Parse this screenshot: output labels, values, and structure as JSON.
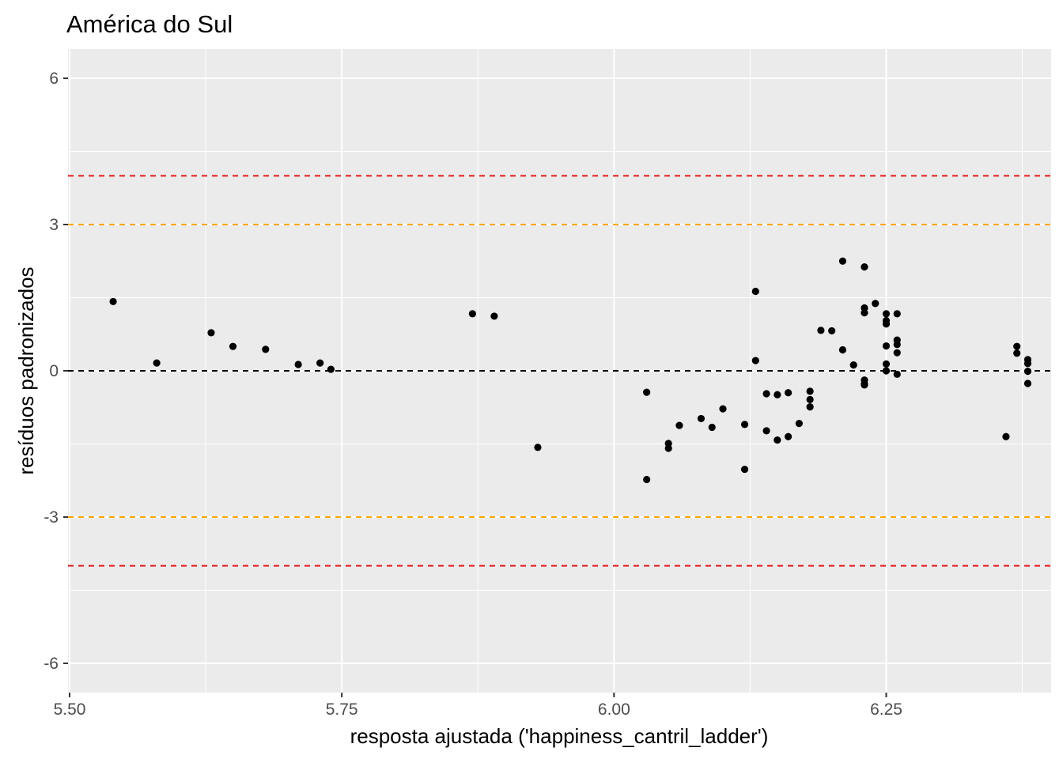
{
  "chart_data": {
    "type": "scatter",
    "title": "América do Sul",
    "xlabel": "resposta ajustada ('happiness_cantril_ladder')",
    "ylabel": "resíduos padronizados",
    "xlim": [
      5.5,
      6.4
    ],
    "ylim": [
      -6.6,
      6.6
    ],
    "x_ticks": [
      5.5,
      5.75,
      6.0,
      6.25
    ],
    "x_tick_labels": [
      "5.50",
      "5.75",
      "6.00",
      "6.25"
    ],
    "y_ticks": [
      -6,
      -3,
      0,
      3,
      6
    ],
    "y_tick_labels": [
      "-6",
      "-3",
      "0",
      "3",
      "6"
    ],
    "grid": true,
    "panel_color": "#ebebeb",
    "point_color": "#000000",
    "reference_lines": [
      {
        "y": 0,
        "color": "#000000",
        "style": "dashed"
      },
      {
        "y": 3,
        "color": "#ffa500",
        "style": "dashed"
      },
      {
        "y": -3,
        "color": "#ffa500",
        "style": "dashed"
      },
      {
        "y": 4,
        "color": "#e41a1c",
        "style": "dashed"
      },
      {
        "y": -4,
        "color": "#e41a1c",
        "style": "dashed"
      }
    ],
    "points": [
      [
        5.54,
        1.42
      ],
      [
        5.58,
        0.16
      ],
      [
        5.63,
        0.78
      ],
      [
        5.65,
        0.5
      ],
      [
        5.68,
        0.44
      ],
      [
        5.71,
        0.13
      ],
      [
        5.73,
        0.16
      ],
      [
        5.74,
        0.03
      ],
      [
        5.87,
        1.17
      ],
      [
        5.89,
        1.12
      ],
      [
        5.93,
        -1.57
      ],
      [
        6.03,
        -2.23
      ],
      [
        6.03,
        -0.44
      ],
      [
        6.05,
        -1.59
      ],
      [
        6.05,
        -1.49
      ],
      [
        6.06,
        -1.12
      ],
      [
        6.08,
        -0.98
      ],
      [
        6.09,
        -1.16
      ],
      [
        6.1,
        -0.78
      ],
      [
        6.12,
        -2.02
      ],
      [
        6.12,
        -1.1
      ],
      [
        6.13,
        1.63
      ],
      [
        6.13,
        0.21
      ],
      [
        6.14,
        -0.47
      ],
      [
        6.14,
        -1.23
      ],
      [
        6.15,
        -0.49
      ],
      [
        6.15,
        -1.42
      ],
      [
        6.16,
        -0.45
      ],
      [
        6.16,
        -1.35
      ],
      [
        6.17,
        -1.08
      ],
      [
        6.18,
        -0.42
      ],
      [
        6.18,
        -0.59
      ],
      [
        6.18,
        -0.74
      ],
      [
        6.19,
        0.83
      ],
      [
        6.2,
        0.82
      ],
      [
        6.21,
        2.25
      ],
      [
        6.21,
        0.43
      ],
      [
        6.22,
        0.12
      ],
      [
        6.23,
        -0.29
      ],
      [
        6.23,
        -0.27
      ],
      [
        6.23,
        2.13
      ],
      [
        6.23,
        -0.19
      ],
      [
        6.23,
        1.19
      ],
      [
        6.23,
        1.29
      ],
      [
        6.24,
        1.38
      ],
      [
        6.25,
        0.51
      ],
      [
        6.25,
        0.0
      ],
      [
        6.25,
        1.17
      ],
      [
        6.25,
        0.96
      ],
      [
        6.25,
        1.03
      ],
      [
        6.25,
        0.14
      ],
      [
        6.26,
        1.17
      ],
      [
        6.26,
        0.37
      ],
      [
        6.26,
        -0.07
      ],
      [
        6.26,
        0.63
      ],
      [
        6.26,
        0.54
      ],
      [
        6.36,
        -1.35
      ],
      [
        6.37,
        0.36
      ],
      [
        6.37,
        0.5
      ],
      [
        6.38,
        0.23
      ],
      [
        6.38,
        0.15
      ],
      [
        6.38,
        -0.01
      ],
      [
        6.38,
        -0.26
      ]
    ]
  }
}
